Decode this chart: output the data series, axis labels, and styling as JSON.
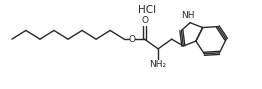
{
  "background_color": "#ffffff",
  "line_color": "#2a2a2a",
  "text_color": "#2a2a2a",
  "lw": 1.0,
  "hcl_label": "HCl",
  "nh_label": "NH",
  "nh2_label": "NH₂",
  "o_carbonyl_label": "O",
  "o_ester_label": "O"
}
